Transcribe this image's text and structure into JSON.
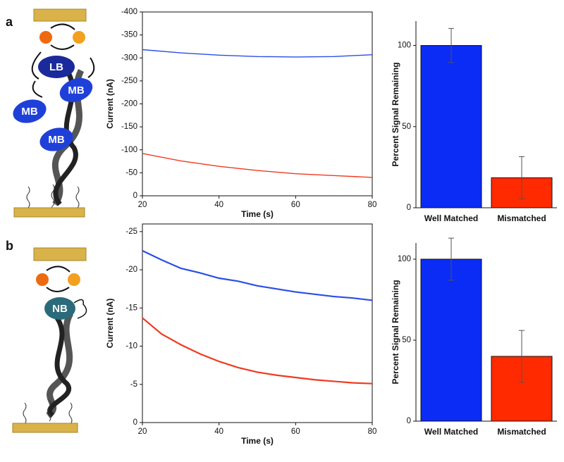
{
  "panel_labels": [
    "a",
    "b"
  ],
  "schematics": [
    {
      "labels": [
        "LB",
        "MB",
        "MB",
        "MB"
      ]
    },
    {
      "labels": [
        "NB"
      ]
    }
  ],
  "chart_data": [
    {
      "type": "line",
      "xlabel": "Time (s)",
      "ylabel": "Current (nA)",
      "x": [
        20,
        30,
        40,
        50,
        60,
        70,
        80
      ],
      "series": [
        {
          "color": "#2a4ee8",
          "values": [
            -318,
            -311,
            -306,
            -303,
            -302,
            -303,
            -307
          ]
        },
        {
          "color": "#f03a20",
          "values": [
            -92,
            -76,
            -64,
            -55,
            -48,
            -44,
            -40
          ]
        }
      ],
      "xlim": [
        20,
        80
      ],
      "xticks": [
        20,
        40,
        60,
        80
      ],
      "ylim": [
        0,
        -400
      ],
      "yticks": [
        -400,
        -350,
        -300,
        -250,
        -200,
        -150,
        -100,
        -50,
        0
      ]
    },
    {
      "type": "bar",
      "ylabel": "Percent Signal Remaining",
      "categories": [
        "Well Matched",
        "Mismatched"
      ],
      "values": [
        100,
        18.5
      ],
      "errors": [
        10.5,
        13
      ],
      "colors": [
        "#0a2cf5",
        "#ff2a00"
      ],
      "ylim": [
        0,
        115
      ],
      "yticks": [
        0,
        50,
        100
      ]
    },
    {
      "type": "line",
      "xlabel": "Time (s)",
      "ylabel": "Current (nA)",
      "x": [
        20,
        25,
        30,
        35,
        40,
        45,
        50,
        55,
        60,
        65,
        70,
        75,
        80
      ],
      "series": [
        {
          "color": "#2a4ee8",
          "values": [
            -22.5,
            -21.3,
            -20.2,
            -19.6,
            -18.9,
            -18.5,
            -17.9,
            -17.5,
            -17.1,
            -16.8,
            -16.5,
            -16.3,
            -16.0
          ]
        },
        {
          "color": "#f03a20",
          "values": [
            -13.7,
            -11.6,
            -10.2,
            -9.0,
            -8.0,
            -7.2,
            -6.6,
            -6.2,
            -5.9,
            -5.6,
            -5.4,
            -5.2,
            -5.1
          ]
        }
      ],
      "xlim": [
        20,
        80
      ],
      "xticks": [
        20,
        40,
        60,
        80
      ],
      "ylim": [
        0,
        -26
      ],
      "yticks": [
        -25,
        -20,
        -15,
        -10,
        -5,
        0
      ]
    },
    {
      "type": "bar",
      "ylabel": "Percent Signal Remaining",
      "categories": [
        "Well Matched",
        "Mismatched"
      ],
      "values": [
        100,
        40
      ],
      "errors": [
        13,
        16
      ],
      "colors": [
        "#0a2cf5",
        "#ff2a00"
      ],
      "ylim": [
        0,
        110
      ],
      "yticks": [
        0,
        50,
        100
      ]
    }
  ]
}
